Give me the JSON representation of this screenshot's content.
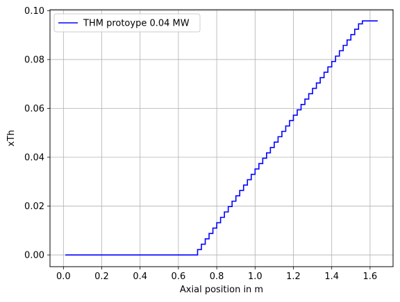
{
  "chart_data": {
    "type": "line",
    "title": "",
    "xlabel": "Axial position in m",
    "ylabel": "xTh",
    "xlim": [
      -0.07,
      1.72
    ],
    "ylim": [
      -0.0048,
      0.1004
    ],
    "xticks": [
      0.0,
      0.2,
      0.4,
      0.6,
      0.8,
      1.0,
      1.2,
      1.4,
      1.6
    ],
    "xtick_labels": [
      "0.0",
      "0.2",
      "0.4",
      "0.6",
      "0.8",
      "1.0",
      "1.2",
      "1.4",
      "1.6"
    ],
    "yticks": [
      0.0,
      0.02,
      0.04,
      0.06,
      0.08,
      0.1
    ],
    "ytick_labels": [
      "0.00",
      "0.02",
      "0.04",
      "0.06",
      "0.08",
      "0.10"
    ],
    "grid": true,
    "legend_position": "top-left",
    "step": true,
    "series": [
      {
        "name": "THM protoype 0.04 MW",
        "color": "#0000ff",
        "x": [
          0.01,
          0.7,
          0.72,
          0.74,
          0.76,
          0.78,
          0.8,
          0.82,
          0.84,
          0.86,
          0.88,
          0.9,
          0.92,
          0.94,
          0.96,
          0.98,
          1.0,
          1.02,
          1.04,
          1.06,
          1.08,
          1.1,
          1.12,
          1.14,
          1.16,
          1.18,
          1.2,
          1.22,
          1.24,
          1.26,
          1.28,
          1.3,
          1.32,
          1.34,
          1.36,
          1.38,
          1.4,
          1.42,
          1.44,
          1.46,
          1.48,
          1.5,
          1.52,
          1.54,
          1.56,
          1.58,
          1.6,
          1.62,
          1.64
        ],
        "y": [
          0.0,
          0.0,
          0.0022,
          0.0044,
          0.0066,
          0.0088,
          0.011,
          0.0132,
          0.0154,
          0.0176,
          0.0198,
          0.022,
          0.0242,
          0.0264,
          0.0286,
          0.0308,
          0.033,
          0.0352,
          0.0374,
          0.0396,
          0.0418,
          0.044,
          0.0462,
          0.0484,
          0.0506,
          0.0528,
          0.055,
          0.0572,
          0.0594,
          0.0616,
          0.0638,
          0.066,
          0.0682,
          0.0704,
          0.0726,
          0.0748,
          0.077,
          0.0792,
          0.0814,
          0.0836,
          0.0858,
          0.088,
          0.0902,
          0.0924,
          0.0946,
          0.0958,
          0.0958,
          0.0958,
          0.0958
        ]
      }
    ]
  }
}
